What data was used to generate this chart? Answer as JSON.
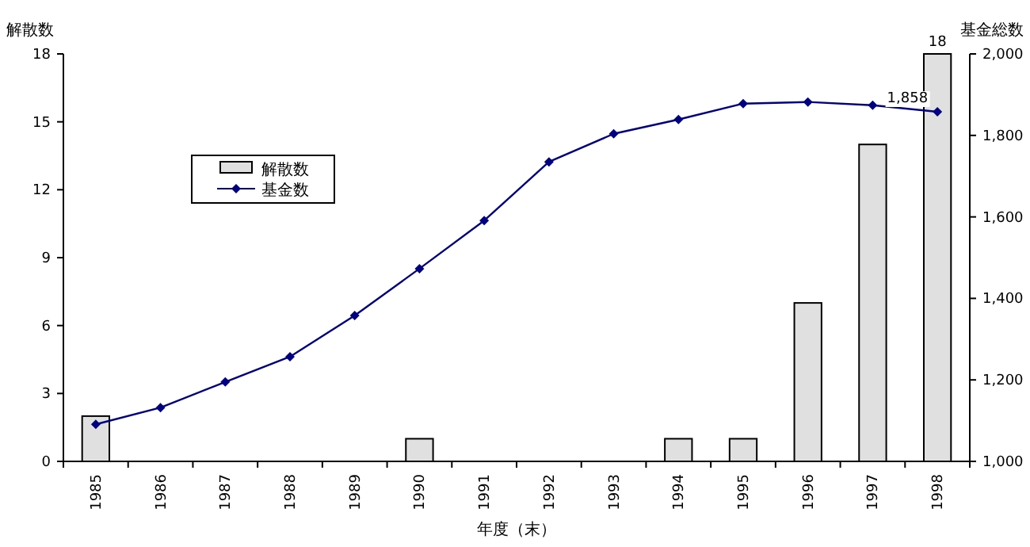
{
  "chart_data": {
    "type": "bar",
    "xlabel": "年度（末）",
    "ylabel": "解散数",
    "y2label": "基金総数",
    "categories": [
      "1985",
      "1986",
      "1987",
      "1988",
      "1989",
      "1990",
      "1991",
      "1992",
      "1993",
      "1994",
      "1995",
      "1996",
      "1997",
      "1998"
    ],
    "ylim": [
      0,
      18
    ],
    "yticks": [
      0,
      3,
      6,
      9,
      12,
      15,
      18
    ],
    "y2lim": [
      1000,
      2000
    ],
    "y2ticks": [
      {
        "value": 1000,
        "label": "1,000"
      },
      {
        "value": 1200,
        "label": "1,200"
      },
      {
        "value": 1400,
        "label": "1,400"
      },
      {
        "value": 1600,
        "label": "1,600"
      },
      {
        "value": 1800,
        "label": "1,800"
      },
      {
        "value": 2000,
        "label": "2,000"
      }
    ],
    "grid": false,
    "legend": "top left",
    "series": [
      {
        "name": "解散数",
        "color": "#e0e0e0",
        "values": [
          2,
          0,
          0,
          0,
          0,
          1,
          0,
          0,
          0,
          1,
          1,
          7,
          14,
          18
        ],
        "value_labels": [
          null,
          null,
          null,
          null,
          null,
          null,
          null,
          null,
          null,
          null,
          null,
          null,
          null,
          "18"
        ]
      },
      {
        "name": "基金数",
        "type": "line",
        "axis": "y2",
        "color": "#000080",
        "marker": "diamond",
        "values": [
          1091,
          1132,
          1195,
          1257,
          1358,
          1473,
          1591,
          1735,
          1804,
          1839,
          1878,
          1882,
          1874,
          1858
        ],
        "value_labels": [
          null,
          null,
          null,
          null,
          null,
          null,
          null,
          null,
          null,
          null,
          null,
          null,
          null,
          "1,858"
        ]
      }
    ]
  }
}
